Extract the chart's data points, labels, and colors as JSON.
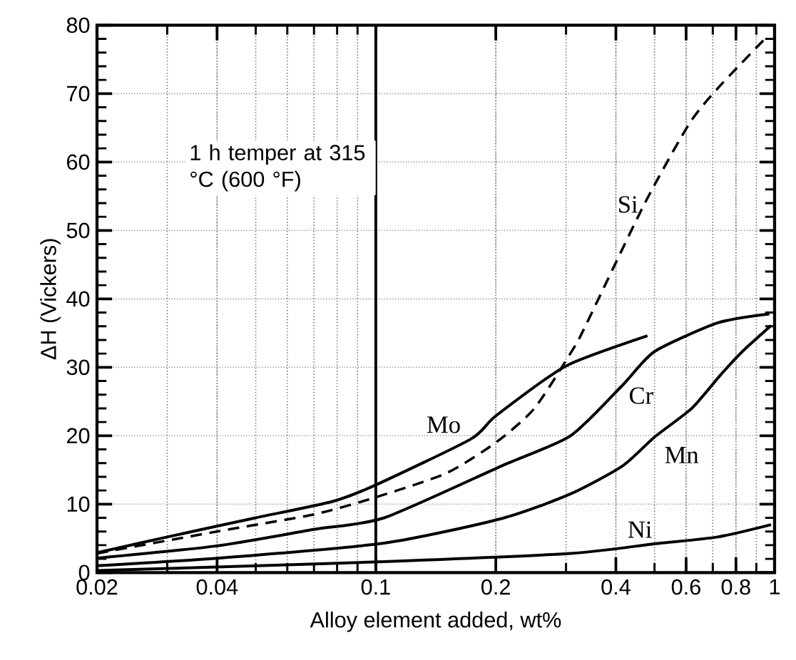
{
  "chart_data": {
    "type": "line",
    "xlabel": "Alloy element added, wt%",
    "ylabel": "ΔH (Vickers)",
    "log": "x",
    "xlim": [
      0.02,
      1
    ],
    "ylim": [
      0,
      80
    ],
    "xticks": [
      0.02,
      0.04,
      0.1,
      0.2,
      0.4,
      0.6,
      0.8,
      1
    ],
    "yticks": [
      0,
      10,
      20,
      30,
      40,
      50,
      60,
      70,
      80
    ],
    "grid": true,
    "line_style": "solid",
    "marker": "none",
    "ref_lines": [
      {
        "axis": "x",
        "value": 0.1,
        "color": "#000000"
      }
    ],
    "annotations": [
      "1 h temper at 315 °C (600 °F)"
    ],
    "series": [
      {
        "name": "Mo",
        "color": "#000000",
        "x": [
          0.02,
          0.03,
          0.05,
          0.078,
          0.1,
          0.173,
          0.2,
          0.3,
          0.48
        ],
        "values": [
          2.9,
          5.2,
          8,
          10.4,
          12.8,
          19.5,
          22.9,
          30.2,
          34.6
        ]
      },
      {
        "name": "Cr",
        "color": "#000000",
        "x": [
          0.02,
          0.04,
          0.07,
          0.105,
          0.207,
          0.308,
          0.416,
          0.5,
          0.721,
          0.97
        ],
        "values": [
          2.1,
          3.9,
          6.3,
          8,
          15.6,
          20,
          27.4,
          32.3,
          36.5,
          37.8
        ]
      },
      {
        "name": "Mn",
        "color": "#000000",
        "x": [
          0.02,
          0.04,
          0.105,
          0.207,
          0.308,
          0.416,
          0.5,
          0.62,
          0.73,
          0.83,
          0.98
        ],
        "values": [
          1,
          2.1,
          4.3,
          7.9,
          11.5,
          15.6,
          19.8,
          24,
          28.8,
          32.3,
          36.1
        ]
      },
      {
        "name": "Ni",
        "color": "#000000",
        "x": [
          0.02,
          0.04,
          0.105,
          0.308,
          0.5,
          0.72,
          0.98
        ],
        "values": [
          0.3,
          0.8,
          1.6,
          2.8,
          4.2,
          5.2,
          7
        ]
      },
      {
        "name": "Si",
        "color": "#000000",
        "line_style": "dashed",
        "x": [
          0.02,
          0.04,
          0.07,
          0.1,
          0.15,
          0.2,
          0.25,
          0.312,
          0.334,
          0.471,
          0.611,
          0.721,
          0.949
        ],
        "values": [
          2.8,
          6,
          8.5,
          11,
          14.5,
          19,
          24,
          32.6,
          35.8,
          53.8,
          65.6,
          70.8,
          78.1
        ]
      }
    ]
  }
}
